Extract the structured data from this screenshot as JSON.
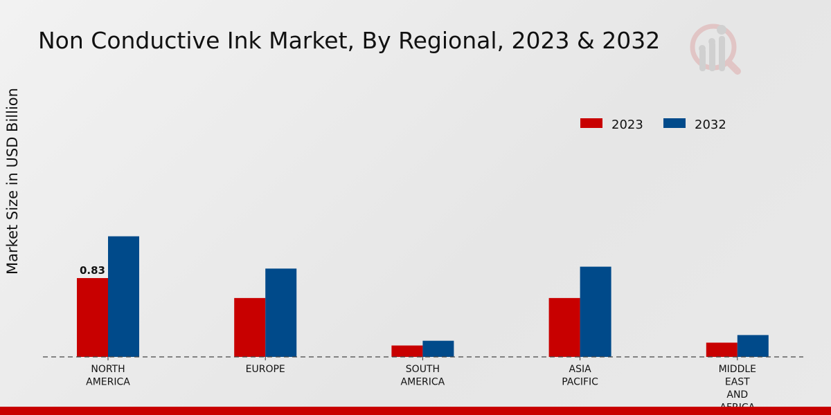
{
  "chart_data": {
    "type": "bar",
    "title": "Non Conductive Ink Market, By Regional, 2023 & 2032",
    "xlabel": "",
    "ylabel": "Market Size in USD Billion",
    "categories": [
      [
        "NORTH",
        "AMERICA"
      ],
      [
        "EUROPE"
      ],
      [
        "SOUTH",
        "AMERICA"
      ],
      [
        "ASIA",
        "PACIFIC"
      ],
      [
        "MIDDLE",
        "EAST",
        "AND",
        "AFRICA"
      ]
    ],
    "series": [
      {
        "name": "2023",
        "color": "#c80000",
        "values": [
          0.83,
          0.62,
          0.12,
          0.62,
          0.15
        ]
      },
      {
        "name": "2032",
        "color": "#004a8a",
        "values": [
          1.27,
          0.93,
          0.17,
          0.95,
          0.23
        ]
      }
    ],
    "data_labels": [
      {
        "series": 0,
        "index": 0,
        "text": "0.83"
      }
    ],
    "ylim": [
      0,
      2.9
    ],
    "grid": false,
    "legend_position": "top-right"
  },
  "footer_bar_color": "#c80000"
}
